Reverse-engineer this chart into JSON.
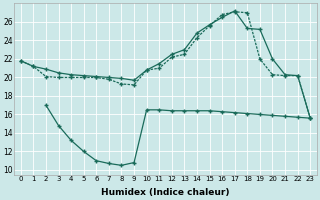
{
  "title": "",
  "xlabel": "Humidex (Indice chaleur)",
  "bg_color": "#cce8e8",
  "line_color": "#1a6b5a",
  "xlim": [
    -0.5,
    23.5
  ],
  "ylim": [
    9.5,
    28
  ],
  "yticks": [
    10,
    12,
    14,
    16,
    18,
    20,
    22,
    24,
    26
  ],
  "xticks": [
    0,
    1,
    2,
    3,
    4,
    5,
    6,
    7,
    8,
    9,
    10,
    11,
    12,
    13,
    14,
    15,
    16,
    17,
    18,
    19,
    20,
    21,
    22,
    23
  ],
  "line1_x": [
    0,
    1,
    2,
    3,
    4,
    5,
    6,
    7,
    8,
    9,
    10,
    11,
    12,
    13,
    14,
    15,
    16,
    17,
    18,
    19,
    20,
    21,
    22,
    23
  ],
  "line1_y": [
    21.8,
    21.2,
    20.9,
    20.5,
    20.3,
    20.2,
    20.1,
    20.0,
    19.9,
    19.7,
    20.8,
    21.5,
    22.5,
    23.0,
    24.8,
    25.7,
    26.5,
    27.2,
    25.3,
    25.2,
    22.0,
    20.3,
    20.2,
    15.6
  ],
  "line2_x": [
    0,
    1,
    2,
    3,
    4,
    5,
    6,
    7,
    8,
    9,
    10,
    11,
    12,
    13,
    14,
    15,
    16,
    17,
    18,
    19,
    20,
    21,
    22,
    23
  ],
  "line2_y": [
    21.8,
    21.2,
    20.1,
    20.0,
    20.0,
    20.0,
    20.0,
    19.8,
    19.3,
    19.2,
    20.8,
    21.0,
    22.2,
    22.5,
    24.3,
    25.6,
    26.8,
    27.1,
    27.0,
    22.0,
    20.3,
    20.2,
    20.2,
    15.6
  ],
  "line3_x": [
    2,
    3,
    4,
    5,
    6,
    7,
    8,
    9,
    10,
    11,
    12,
    13,
    14,
    15,
    16,
    17,
    18,
    19,
    20,
    21,
    22,
    23
  ],
  "line3_y": [
    17.0,
    14.8,
    13.2,
    12.0,
    11.0,
    10.7,
    10.5,
    10.8,
    16.5,
    16.5,
    16.4,
    16.4,
    16.4,
    16.4,
    16.3,
    16.2,
    16.1,
    16.0,
    15.9,
    15.8,
    15.7,
    15.6
  ],
  "markersize": 2.5
}
